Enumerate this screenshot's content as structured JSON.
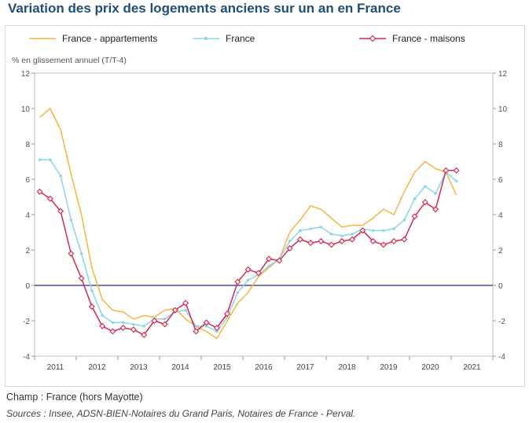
{
  "title": "Variation des prix des logements anciens sur un an en France",
  "notes": {
    "champ": "Champ : France (hors Mayotte)",
    "sources": "Sources : Insee, ADSN-BIEN-Notaires du Grand Paris, Notaires de France - Perval."
  },
  "chart_data": {
    "type": "line",
    "title": "Variation des prix des logements anciens sur un an en France",
    "ylabel": "% en glissement annuel (T/T-4)",
    "xlabel": "",
    "ylim": [
      -4,
      12
    ],
    "yticks": [
      -4,
      -2,
      0,
      2,
      4,
      6,
      8,
      10,
      12
    ],
    "xrange": [
      2011.0,
      2022.0
    ],
    "years": [
      "2011",
      "2012",
      "2013",
      "2014",
      "2015",
      "2016",
      "2017",
      "2018",
      "2019",
      "2020",
      "2021"
    ],
    "legend_position": "top",
    "x": [
      2011.125,
      2011.375,
      2011.625,
      2011.875,
      2012.125,
      2012.375,
      2012.625,
      2012.875,
      2013.125,
      2013.375,
      2013.625,
      2013.875,
      2014.125,
      2014.375,
      2014.625,
      2014.875,
      2015.125,
      2015.375,
      2015.625,
      2015.875,
      2016.125,
      2016.375,
      2016.625,
      2016.875,
      2017.125,
      2017.375,
      2017.625,
      2017.875,
      2018.125,
      2018.375,
      2018.625,
      2018.875,
      2019.125,
      2019.375,
      2019.625,
      2019.875,
      2020.125,
      2020.375,
      2020.625,
      2020.875,
      2021.125,
      2021.375
    ],
    "series": [
      {
        "name": "France - appartements",
        "color": "#f4b63d",
        "marker": "none",
        "values": [
          9.5,
          10.0,
          8.8,
          6.3,
          4.0,
          1.0,
          -0.8,
          -1.4,
          -1.5,
          -1.9,
          -1.7,
          -1.8,
          -1.4,
          -1.3,
          -1.9,
          -2.3,
          -2.6,
          -3.0,
          -2.0,
          -1.0,
          -0.4,
          0.5,
          1.0,
          1.5,
          3.0,
          3.7,
          4.5,
          4.3,
          3.8,
          3.3,
          3.4,
          3.4,
          3.8,
          4.3,
          4.0,
          5.3,
          6.4,
          7.0,
          6.6,
          6.4,
          5.1,
          null
        ]
      },
      {
        "name": "France",
        "color": "#8fd3ea",
        "marker": "dot",
        "values": [
          7.1,
          7.1,
          6.2,
          3.7,
          1.8,
          -0.3,
          -1.7,
          -2.1,
          -2.1,
          -2.2,
          -2.3,
          -1.9,
          -1.9,
          -1.5,
          -1.4,
          -2.3,
          -2.3,
          -2.6,
          -1.8,
          -0.4,
          0.3,
          0.6,
          1.1,
          1.5,
          2.5,
          3.1,
          3.2,
          3.3,
          2.9,
          2.8,
          2.9,
          3.2,
          3.1,
          3.1,
          3.2,
          3.7,
          4.9,
          5.6,
          5.2,
          6.4,
          5.9,
          null
        ]
      },
      {
        "name": "France - maisons",
        "color": "#d6284f",
        "marker": "diamond",
        "values": [
          5.3,
          4.9,
          4.2,
          1.8,
          0.4,
          -1.2,
          -2.3,
          -2.6,
          -2.4,
          -2.5,
          -2.8,
          -2.0,
          -2.2,
          -1.4,
          -1.0,
          -2.6,
          -2.1,
          -2.4,
          -1.6,
          0.2,
          0.9,
          0.7,
          1.5,
          1.4,
          2.1,
          2.6,
          2.4,
          2.5,
          2.3,
          2.5,
          2.6,
          3.1,
          2.5,
          2.3,
          2.5,
          2.6,
          3.9,
          4.7,
          4.3,
          6.5,
          6.5,
          null
        ]
      }
    ]
  }
}
